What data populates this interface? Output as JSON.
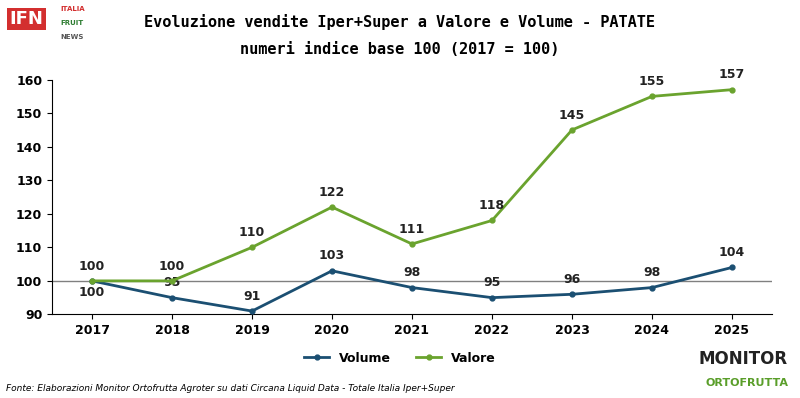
{
  "chart_data": {
    "type": "line",
    "title": "Evoluzione vendite Iper+Super a Valore e Volume - PATATE",
    "subtitle": "numeri indice base 100 (2017 = 100)",
    "source": "Fonte: Elaborazioni Monitor Ortofrutta Agroter su dati Circana Liquid Data - Totale Italia Iper+Super",
    "logo_texts": [
      "IFN",
      "ITALIA",
      "FRUIT",
      "NEWS",
      "MONITOR",
      "ORTOFRUTTA"
    ],
    "categories": [
      "2017",
      "2018",
      "2019",
      "2020",
      "2021",
      "2022",
      "2023",
      "2024",
      "2025"
    ],
    "series": [
      {
        "name": "Volume",
        "color": "#1b4f72",
        "marker": "o",
        "values": [
          100,
          95,
          91,
          103,
          98,
          95,
          96,
          98,
          104
        ]
      },
      {
        "name": "Valore",
        "color": "#6aa32e",
        "marker": "o",
        "values": [
          100,
          100,
          110,
          122,
          111,
          118,
          145,
          155,
          157
        ]
      }
    ],
    "reference_line": 100,
    "ylim": [
      90,
      160
    ],
    "yticks": [
      90,
      100,
      110,
      120,
      130,
      140,
      150,
      160
    ],
    "grid": false,
    "legend": "lower center",
    "data_labels": true
  }
}
